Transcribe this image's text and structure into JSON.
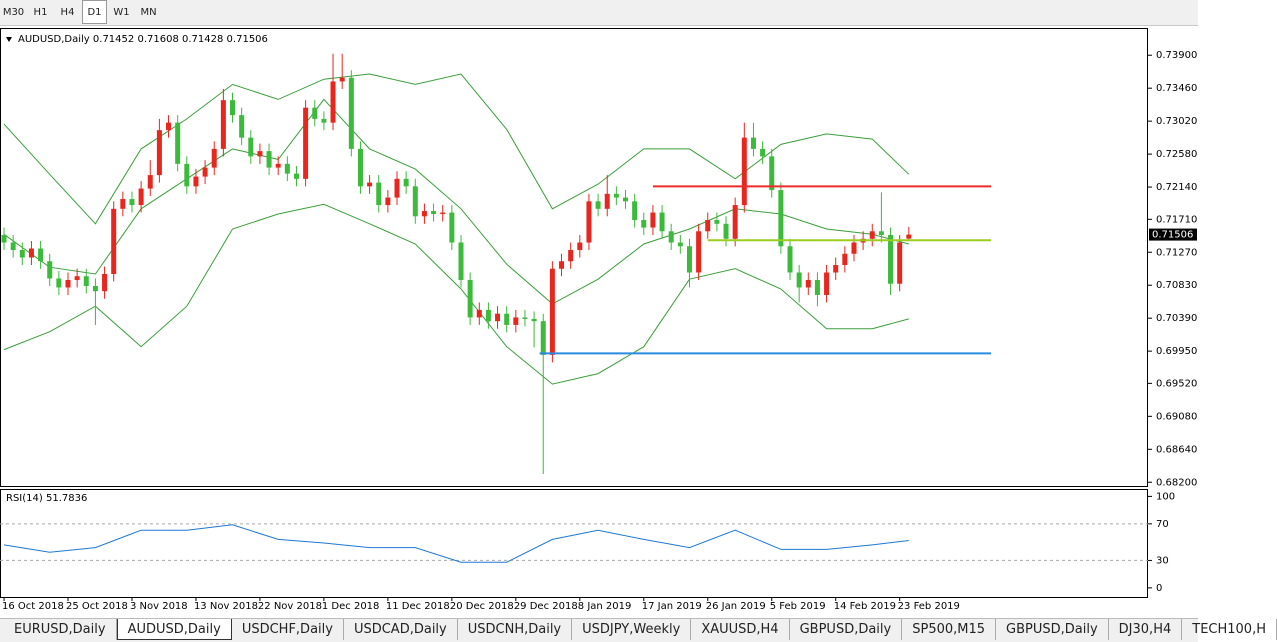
{
  "toolbar": [
    {
      "label": "M30",
      "active": false
    },
    {
      "label": "H1",
      "active": false
    },
    {
      "label": "H4",
      "active": false
    },
    {
      "label": "D1",
      "active": true
    },
    {
      "label": "W1",
      "active": false
    },
    {
      "label": "MN",
      "active": false
    }
  ],
  "tabs": [
    {
      "label": "EURUSD,Daily",
      "active": false
    },
    {
      "label": "AUDUSD,Daily",
      "active": true
    },
    {
      "label": "USDCHF,Daily",
      "active": false
    },
    {
      "label": "USDCAD,Daily",
      "active": false
    },
    {
      "label": "USDCNH,Daily",
      "active": false
    },
    {
      "label": "USDJPY,Weekly",
      "active": false
    },
    {
      "label": "XAUUSD,H4",
      "active": false
    },
    {
      "label": "GBPUSD,Daily",
      "active": false
    },
    {
      "label": "SP500,M15",
      "active": false
    },
    {
      "label": "GBPUSD,Daily",
      "active": false
    },
    {
      "label": "DJ30,H4",
      "active": false
    },
    {
      "label": "TECH100,H",
      "active": false
    }
  ],
  "chart_data": [
    {
      "type": "candlestick",
      "title": "AUDUSD,Daily",
      "up_color": "#e8261e",
      "down_color": "#3cba3c",
      "candles": {
        "open": [
          0.715,
          0.714,
          0.713,
          0.712,
          0.7132,
          0.7115,
          0.7092,
          0.708,
          0.709,
          0.7095,
          0.7082,
          0.7075,
          0.7098,
          0.7185,
          0.7198,
          0.719,
          0.7212,
          0.723,
          0.729,
          0.73,
          0.7245,
          0.7215,
          0.7228,
          0.724,
          0.7265,
          0.733,
          0.731,
          0.728,
          0.7255,
          0.7262,
          0.724,
          0.7245,
          0.7232,
          0.7225,
          0.732,
          0.7305,
          0.73,
          0.7355,
          0.736,
          0.7265,
          0.7215,
          0.722,
          0.719,
          0.72,
          0.7225,
          0.7215,
          0.7175,
          0.7182,
          0.7178,
          0.718,
          0.714,
          0.709,
          0.704,
          0.705,
          0.7035,
          0.7045,
          0.703,
          0.704,
          0.7038,
          0.7035,
          0.699,
          0.7105,
          0.7115,
          0.713,
          0.714,
          0.7195,
          0.7185,
          0.7205,
          0.72,
          0.7195,
          0.717,
          0.716,
          0.718,
          0.7155,
          0.714,
          0.7135,
          0.71,
          0.7155,
          0.717,
          0.7165,
          0.7145,
          0.719,
          0.728,
          0.7265,
          0.7255,
          0.721,
          0.7135,
          0.71,
          0.708,
          0.709,
          0.707,
          0.71,
          0.711,
          0.7125,
          0.714,
          0.7145,
          0.7155,
          0.715,
          0.7085,
          0.71452
        ],
        "high": [
          0.716,
          0.715,
          0.714,
          0.7142,
          0.7142,
          0.7125,
          0.7102,
          0.71,
          0.7105,
          0.7105,
          0.7092,
          0.7108,
          0.7195,
          0.7208,
          0.7208,
          0.7222,
          0.725,
          0.7305,
          0.731,
          0.731,
          0.7255,
          0.7238,
          0.725,
          0.7275,
          0.7345,
          0.734,
          0.732,
          0.729,
          0.7272,
          0.7272,
          0.7255,
          0.7255,
          0.7242,
          0.733,
          0.733,
          0.7315,
          0.7392,
          0.7392,
          0.737,
          0.7275,
          0.723,
          0.723,
          0.721,
          0.7235,
          0.7235,
          0.7225,
          0.7192,
          0.7192,
          0.719,
          0.719,
          0.715,
          0.71,
          0.706,
          0.706,
          0.7055,
          0.7055,
          0.705,
          0.705,
          0.7048,
          0.7045,
          0.7115,
          0.7125,
          0.714,
          0.715,
          0.7205,
          0.7205,
          0.723,
          0.7215,
          0.721,
          0.7205,
          0.718,
          0.719,
          0.719,
          0.7165,
          0.715,
          0.7145,
          0.7165,
          0.718,
          0.718,
          0.7175,
          0.72,
          0.73,
          0.73,
          0.7275,
          0.7265,
          0.722,
          0.7145,
          0.711,
          0.71,
          0.71,
          0.711,
          0.712,
          0.7135,
          0.715,
          0.7155,
          0.7165,
          0.7207,
          0.716,
          0.715,
          0.71608
        ],
        "low": [
          0.713,
          0.712,
          0.711,
          0.711,
          0.7105,
          0.7082,
          0.707,
          0.707,
          0.708,
          0.7072,
          0.703,
          0.7065,
          0.7088,
          0.7175,
          0.718,
          0.718,
          0.7202,
          0.722,
          0.728,
          0.7235,
          0.7205,
          0.7205,
          0.7218,
          0.723,
          0.7255,
          0.73,
          0.727,
          0.7245,
          0.7245,
          0.723,
          0.723,
          0.7222,
          0.7215,
          0.7215,
          0.7295,
          0.729,
          0.729,
          0.7345,
          0.7255,
          0.7205,
          0.7205,
          0.718,
          0.718,
          0.719,
          0.7205,
          0.7165,
          0.7165,
          0.7168,
          0.7168,
          0.713,
          0.708,
          0.703,
          0.703,
          0.7025,
          0.7025,
          0.702,
          0.702,
          0.7028,
          0.7,
          0.6831,
          0.698,
          0.7095,
          0.7105,
          0.712,
          0.713,
          0.7175,
          0.7175,
          0.719,
          0.7185,
          0.716,
          0.715,
          0.715,
          0.7145,
          0.713,
          0.7125,
          0.708,
          0.709,
          0.7145,
          0.7155,
          0.7135,
          0.7135,
          0.718,
          0.7255,
          0.7245,
          0.72,
          0.7125,
          0.709,
          0.706,
          0.707,
          0.7055,
          0.706,
          0.709,
          0.71,
          0.7115,
          0.713,
          0.7135,
          0.714,
          0.707,
          0.7075,
          0.71428
        ],
        "close": [
          0.714,
          0.713,
          0.712,
          0.7132,
          0.7115,
          0.7092,
          0.708,
          0.709,
          0.7095,
          0.7082,
          0.7075,
          0.7098,
          0.7185,
          0.7198,
          0.719,
          0.7212,
          0.723,
          0.729,
          0.73,
          0.7245,
          0.7215,
          0.7228,
          0.724,
          0.7265,
          0.733,
          0.731,
          0.728,
          0.7255,
          0.7262,
          0.724,
          0.7245,
          0.7232,
          0.7225,
          0.732,
          0.7305,
          0.73,
          0.7355,
          0.736,
          0.7265,
          0.7215,
          0.722,
          0.719,
          0.72,
          0.7225,
          0.7215,
          0.7175,
          0.7182,
          0.7178,
          0.718,
          0.714,
          0.709,
          0.704,
          0.705,
          0.7035,
          0.7045,
          0.703,
          0.704,
          0.7038,
          0.7035,
          0.699,
          0.7105,
          0.7115,
          0.713,
          0.714,
          0.7195,
          0.7185,
          0.7205,
          0.72,
          0.7195,
          0.717,
          0.716,
          0.718,
          0.7155,
          0.714,
          0.7135,
          0.71,
          0.7155,
          0.717,
          0.7165,
          0.7145,
          0.719,
          0.728,
          0.7265,
          0.7255,
          0.721,
          0.7135,
          0.71,
          0.708,
          0.709,
          0.707,
          0.71,
          0.711,
          0.7125,
          0.714,
          0.7145,
          0.7155,
          0.715,
          0.7085,
          0.714,
          0.71506
        ]
      },
      "bands": [
        {
          "color": "#3a9f3a",
          "x": [
            0,
            5,
            10,
            15,
            20,
            25,
            30,
            35,
            40,
            45,
            50,
            55,
            60,
            65,
            70,
            75,
            80,
            85,
            90,
            95,
            99
          ],
          "values": [
            0.7298,
            0.7231,
            0.7165,
            0.7265,
            0.7305,
            0.7351,
            0.7331,
            0.7358,
            0.7365,
            0.7351,
            0.7365,
            0.7291,
            0.7185,
            0.7218,
            0.7265,
            0.7265,
            0.7225,
            0.7271,
            0.7285,
            0.7278,
            0.7231
          ]
        },
        {
          "color": "#3a9f3a",
          "x": [
            0,
            5,
            10,
            15,
            20,
            25,
            30,
            35,
            40,
            45,
            50,
            55,
            60,
            65,
            70,
            75,
            80,
            85,
            90,
            95,
            99
          ],
          "values": [
            0.7151,
            0.7107,
            0.7098,
            0.7185,
            0.7225,
            0.7265,
            0.7251,
            0.7331,
            0.7265,
            0.7238,
            0.7185,
            0.7111,
            0.7058,
            0.7091,
            0.7138,
            0.7158,
            0.7185,
            0.7178,
            0.7158,
            0.7151,
            0.7138
          ]
        },
        {
          "color": "#3a9f3a",
          "x": [
            0,
            5,
            10,
            15,
            20,
            25,
            30,
            35,
            40,
            45,
            50,
            55,
            60,
            65,
            70,
            75,
            80,
            85,
            90,
            95,
            99
          ],
          "values": [
            0.6997,
            0.7021,
            0.7055,
            0.7001,
            0.7055,
            0.7158,
            0.7178,
            0.7191,
            0.7165,
            0.7138,
            0.7078,
            0.7001,
            0.6951,
            0.6965,
            0.7001,
            0.7091,
            0.7105,
            0.7078,
            0.7025,
            0.7025,
            0.7038
          ]
        }
      ],
      "hlines": [
        {
          "value": 0.7215,
          "color": "#ee2a2a",
          "x": [
            71,
            108
          ]
        },
        {
          "value": 0.7143,
          "color": "#9acd1e",
          "x": [
            77,
            108
          ]
        },
        {
          "value": 0.6992,
          "color": "#2a8ae0",
          "x": [
            58.6,
            108
          ]
        }
      ],
      "xlim": [
        -0.44,
        125.17
      ],
      "xticks": [
        {
          "value": 0,
          "label": "16 Oct 2018"
        },
        {
          "value": 7,
          "label": "25 Oct 2018"
        },
        {
          "value": 14,
          "label": "3 Nov 2018"
        },
        {
          "value": 21,
          "label": "13 Nov 2018"
        },
        {
          "value": 28,
          "label": "22 Nov 2018"
        },
        {
          "value": 35,
          "label": "1 Dec 2018"
        },
        {
          "value": 42,
          "label": "11 Dec 2018"
        },
        {
          "value": 49,
          "label": "20 Dec 2018"
        },
        {
          "value": 56,
          "label": "29 Dec 2018"
        },
        {
          "value": 63,
          "label": "8 Jan 2019"
        },
        {
          "value": 70,
          "label": "17 Jan 2019"
        },
        {
          "value": 77,
          "label": "26 Jan 2019"
        },
        {
          "value": 84,
          "label": "5 Feb 2019"
        },
        {
          "value": 91,
          "label": "14 Feb 2019"
        },
        {
          "value": 98,
          "label": "23 Feb 2019"
        }
      ],
      "ylim": [
        0.6815,
        0.7425
      ],
      "yticks": [
        {
          "value": 0.739,
          "label": "0.73900"
        },
        {
          "value": 0.7346,
          "label": "0.73460"
        },
        {
          "value": 0.7302,
          "label": "0.73020"
        },
        {
          "value": 0.7258,
          "label": "0.72580"
        },
        {
          "value": 0.7214,
          "label": "0.72140"
        },
        {
          "value": 0.7171,
          "label": "0.71710"
        },
        {
          "value": 0.7127,
          "label": "0.71270"
        },
        {
          "value": 0.7083,
          "label": "0.70830"
        },
        {
          "value": 0.7039,
          "label": "0.70390"
        },
        {
          "value": 0.6995,
          "label": "0.69950"
        },
        {
          "value": 0.6952,
          "label": "0.69520"
        },
        {
          "value": 0.6908,
          "label": "0.69080"
        },
        {
          "value": 0.6864,
          "label": "0.68640"
        },
        {
          "value": 0.682,
          "label": "0.68200"
        }
      ]
    },
    {
      "type": "line",
      "series": [
        {
          "name": "RSI(14)",
          "color": "#1e78d6",
          "x": [
            0,
            5,
            10,
            15,
            20,
            25,
            30,
            35,
            40,
            45,
            50,
            55,
            60,
            65,
            70,
            75,
            80,
            85,
            90,
            95,
            99
          ],
          "values": [
            47,
            39,
            44,
            63,
            63,
            69,
            53,
            49,
            44,
            44,
            28,
            28,
            53,
            63,
            53,
            44,
            63,
            42,
            42,
            47,
            51.7836
          ]
        }
      ],
      "ylim": [
        -10,
        107
      ],
      "yticks": [
        100,
        70,
        30,
        0
      ]
    }
  ]
}
